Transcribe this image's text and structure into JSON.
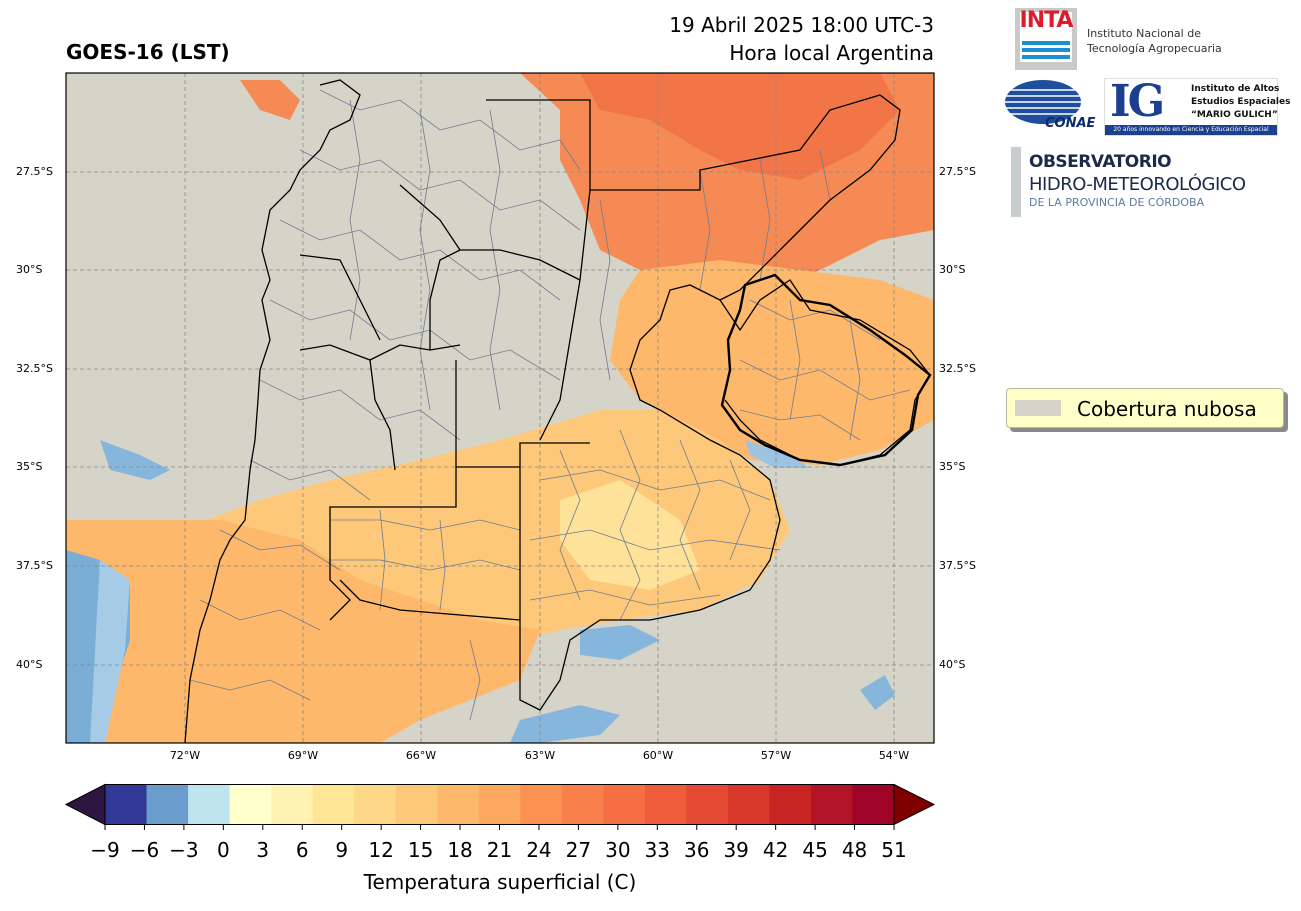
{
  "header": {
    "product": "GOES-16 (LST)",
    "datetime": "19 Abril 2025 18:00 UTC-3",
    "timezone_label": "Hora local Argentina"
  },
  "map": {
    "lat_labels": [
      "27.5°S",
      "30°S",
      "32.5°S",
      "35°S",
      "37.5°S",
      "40°S"
    ],
    "lon_labels": [
      "72°W",
      "69°W",
      "66°W",
      "63°W",
      "60°W",
      "57°W",
      "54°W"
    ],
    "cloud_color": "#d6d4c8"
  },
  "colorbar": {
    "label": "Temperatura superficial (C)",
    "ticks": [
      "−9",
      "−6",
      "−3",
      "0",
      "3",
      "6",
      "9",
      "12",
      "15",
      "18",
      "21",
      "24",
      "27",
      "30",
      "33",
      "36",
      "39",
      "42",
      "45",
      "48",
      "51"
    ],
    "under_color": "#2d1640",
    "over_color": "#800000",
    "colors": [
      "#323895",
      "#6a9ccc",
      "#bee4ef",
      "#ffffcc",
      "#fff2b2",
      "#ffe697",
      "#fed888",
      "#fdc879",
      "#fdb86b",
      "#fda85f",
      "#fc9252",
      "#f9804b",
      "#f56e44",
      "#ee5c3c",
      "#e44a33",
      "#d7382a",
      "#c72423",
      "#b31326",
      "#a00328"
    ]
  },
  "legend": {
    "label": "Cobertura nubosa"
  },
  "logos": {
    "inta_word": "INTA",
    "inta_line1": "Instituto Nacional de",
    "inta_line2": "Tecnología Agropecuaria",
    "conae_word": "CONAE",
    "ig_word": "IG",
    "ig_line1": "Instituto de Altos",
    "ig_line2": "Estudios Espaciales",
    "ig_line3": "“MARIO GULICH”",
    "ig_bar": "20 años innovando en Ciencia y Educación Espacial",
    "obs_line1": "OBSERVATORIO",
    "obs_line2": "HIDRO-METEOROLÓGICO",
    "obs_line3": "DE LA PROVINCIA DE CÓRDOBA"
  }
}
